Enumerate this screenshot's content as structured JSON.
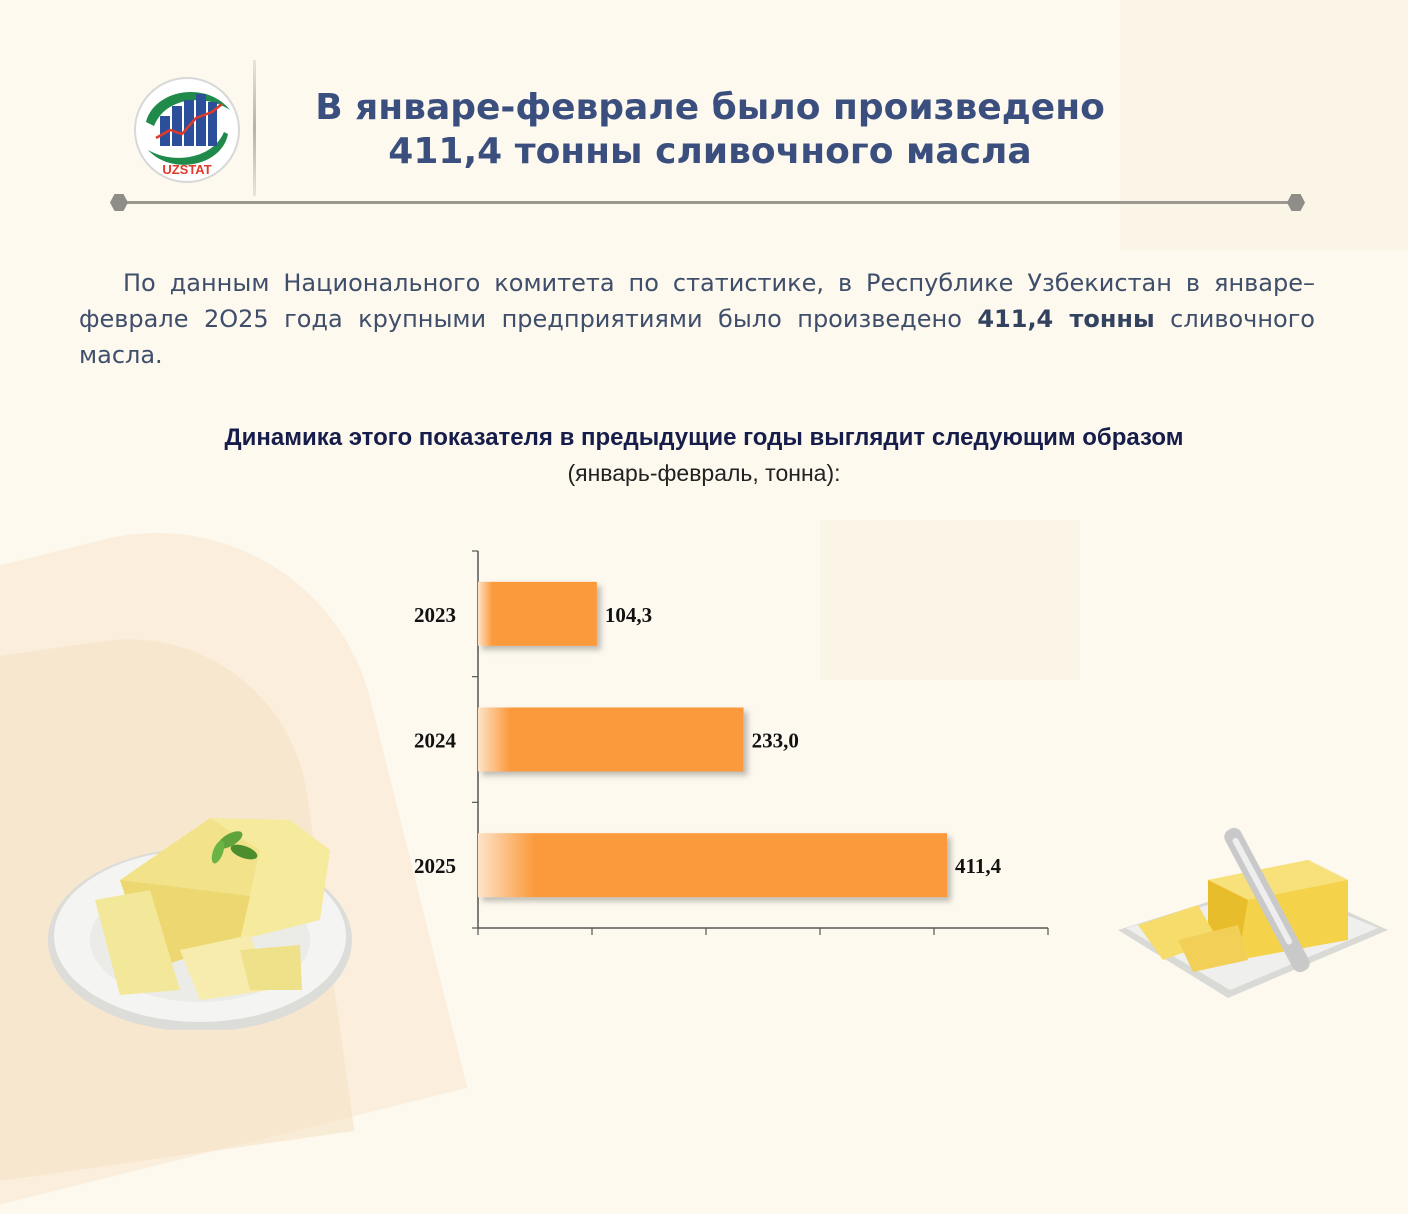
{
  "header": {
    "logo_text": "UZSTAT",
    "title_line1": "В январе-феврале было произведено",
    "title_line2": "411,4 тонны сливочного масла"
  },
  "intro": {
    "text_before": "По данным Национального комитета по статистике, в Республике Узбекистан в январе–феврале 2О25 года крупными предприятиями было произведено ",
    "bold": "411,4 тонны",
    "text_after": " сливочного масла."
  },
  "chart_heading": {
    "title": "Динамика этого показателя в предыдущие годы выглядит следующим образом",
    "subtitle": "(январь-февраль, тонна):"
  },
  "chart_data": {
    "type": "bar",
    "orientation": "horizontal",
    "categories": [
      "2023",
      "2024",
      "2025"
    ],
    "values": [
      104.3,
      233.0,
      411.4
    ],
    "value_labels": [
      "104,3",
      "233,0",
      "411,4"
    ],
    "xlim": [
      0,
      500
    ],
    "grid": false,
    "legend": "none",
    "colors": {
      "bar": "#fb9a3c",
      "bar_fade": "#fde3c8",
      "axis": "#555555"
    }
  }
}
